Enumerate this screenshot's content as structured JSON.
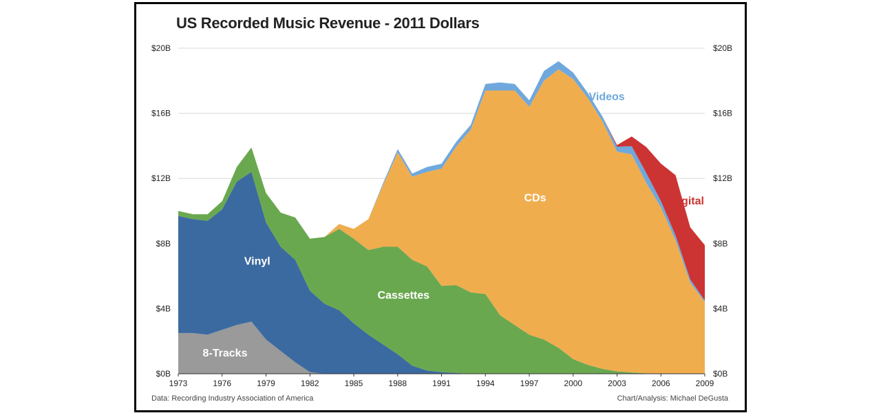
{
  "chart_data": {
    "type": "area",
    "stacked": true,
    "title": "US Recorded Music Revenue - 2011 Dollars",
    "xlabel": "",
    "ylabel": "",
    "x": [
      1973,
      1974,
      1975,
      1976,
      1977,
      1978,
      1979,
      1980,
      1981,
      1982,
      1983,
      1984,
      1985,
      1986,
      1987,
      1988,
      1989,
      1990,
      1991,
      1992,
      1993,
      1994,
      1995,
      1996,
      1997,
      1998,
      1999,
      2000,
      2001,
      2002,
      2003,
      2004,
      2005,
      2006,
      2007,
      2008,
      2009
    ],
    "x_ticks": [
      "1973",
      "1976",
      "1979",
      "1982",
      "1985",
      "1988",
      "1991",
      "1994",
      "1997",
      "2000",
      "2003",
      "2006",
      "2009"
    ],
    "x_tick_values": [
      1973,
      1976,
      1979,
      1982,
      1985,
      1988,
      1991,
      1994,
      1997,
      2000,
      2003,
      2006,
      2009
    ],
    "y_ticks": [
      "$0B",
      "$4B",
      "$8B",
      "$12B",
      "$16B",
      "$20B"
    ],
    "y_tick_values": [
      0,
      4,
      8,
      12,
      16,
      20
    ],
    "ylim": [
      0,
      20
    ],
    "units": "billions of 2011 US dollars",
    "series": [
      {
        "name": "8-Tracks",
        "color": "#9a9a9a",
        "label_x": 1976.2,
        "label_y": 1.05,
        "label_color": "#ffffff",
        "values": [
          2.5,
          2.5,
          2.4,
          2.7,
          3.0,
          3.2,
          2.1,
          1.4,
          0.7,
          0.1,
          0,
          0,
          0,
          0,
          0,
          0,
          0,
          0,
          0,
          0,
          0,
          0,
          0,
          0,
          0,
          0,
          0,
          0,
          0,
          0,
          0,
          0,
          0,
          0,
          0,
          0,
          0
        ]
      },
      {
        "name": "Vinyl",
        "color": "#3b6aa0",
        "label_x": 1978.4,
        "label_y": 6.7,
        "label_color": "#ffffff",
        "values": [
          7.2,
          7.0,
          7.0,
          7.4,
          8.8,
          9.2,
          7.2,
          6.4,
          6.3,
          5.0,
          4.3,
          3.9,
          3.1,
          2.4,
          1.8,
          1.2,
          0.5,
          0.2,
          0.1,
          0.05,
          0,
          0,
          0,
          0,
          0,
          0,
          0,
          0,
          0,
          0,
          0,
          0,
          0,
          0,
          0,
          0,
          0
        ]
      },
      {
        "name": "Cassettes",
        "color": "#6aa84f",
        "label_x": 1988.4,
        "label_y": 4.6,
        "label_color": "#ffffff",
        "values": [
          0.3,
          0.3,
          0.4,
          0.5,
          0.9,
          1.5,
          1.8,
          2.1,
          2.6,
          3.2,
          4.1,
          5.0,
          5.2,
          5.2,
          6.0,
          6.6,
          6.5,
          6.4,
          5.3,
          5.4,
          5.0,
          4.9,
          3.6,
          3.0,
          2.4,
          2.1,
          1.6,
          0.9,
          0.55,
          0.3,
          0.15,
          0.08,
          0.03,
          0.01,
          0,
          0,
          0
        ]
      },
      {
        "name": "CDs",
        "color": "#f0ad4e",
        "label_x": 1997.4,
        "label_y": 10.6,
        "label_color": "#ffffff",
        "values": [
          0,
          0,
          0,
          0,
          0,
          0,
          0,
          0,
          0,
          0,
          0,
          0.3,
          0.6,
          1.9,
          3.8,
          5.8,
          5.1,
          5.8,
          7.2,
          8.5,
          10.0,
          12.5,
          13.8,
          14.4,
          14.0,
          15.9,
          17.1,
          17.2,
          16.4,
          15.2,
          13.5,
          13.4,
          11.7,
          10.2,
          8.2,
          5.6,
          4.4
        ]
      },
      {
        "name": "Videos",
        "color": "#6fa8dc",
        "label_x": 2002.3,
        "label_y": 16.8,
        "label_color": "#6fa8dc",
        "values": [
          0,
          0,
          0,
          0,
          0,
          0,
          0,
          0,
          0,
          0,
          0,
          0,
          0,
          0,
          0.1,
          0.2,
          0.2,
          0.3,
          0.3,
          0.3,
          0.3,
          0.4,
          0.5,
          0.4,
          0.4,
          0.6,
          0.5,
          0.4,
          0.3,
          0.3,
          0.3,
          0.5,
          0.6,
          0.4,
          0.3,
          0.2,
          0.1
        ]
      },
      {
        "name": "Digital",
        "color": "#cc3333",
        "label_x": 2007.8,
        "label_y": 10.4,
        "label_color": "#cc3333",
        "values": [
          0,
          0,
          0,
          0,
          0,
          0,
          0,
          0,
          0,
          0,
          0,
          0,
          0,
          0,
          0,
          0,
          0,
          0,
          0,
          0,
          0,
          0,
          0,
          0,
          0,
          0,
          0,
          0,
          0,
          0,
          0.1,
          0.6,
          1.6,
          2.3,
          3.7,
          3.2,
          3.4
        ]
      }
    ]
  },
  "footer": {
    "source": "Data: Recording Industry Association of America",
    "credit": "Chart/Analysis: Michael DeGusta"
  }
}
